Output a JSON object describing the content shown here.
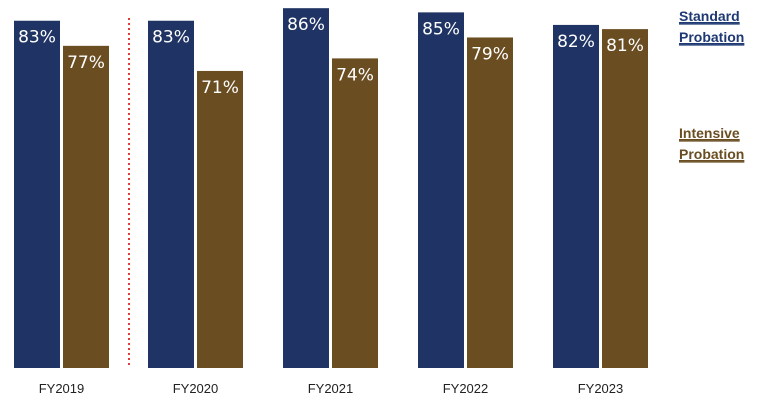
{
  "chart_data": {
    "type": "bar",
    "categories": [
      "FY2019",
      "FY2020",
      "FY2021",
      "FY2022",
      "FY2023"
    ],
    "series": [
      {
        "name": "Standard Probation",
        "legend_lines": [
          "Standard",
          "Probation"
        ],
        "color": "#1F3464",
        "legend_color": "#1F3A73",
        "values": [
          83,
          83,
          86,
          85,
          82
        ],
        "labels": [
          "83%",
          "83%",
          "86%",
          "85%",
          "82%"
        ]
      },
      {
        "name": "Intensive Probation",
        "legend_lines": [
          "Intensive",
          "Probation"
        ],
        "color": "#6A4E22",
        "legend_color": "#6A4E22",
        "values": [
          77,
          71,
          74,
          79,
          81
        ],
        "labels": [
          "77%",
          "71%",
          "74%",
          "79%",
          "81%"
        ]
      }
    ],
    "ylim": [
      0,
      87
    ],
    "grid": false,
    "legend_position": "right",
    "separator": {
      "after_category": "FY2019",
      "style": "dotted",
      "color": "#E23A3A"
    }
  }
}
